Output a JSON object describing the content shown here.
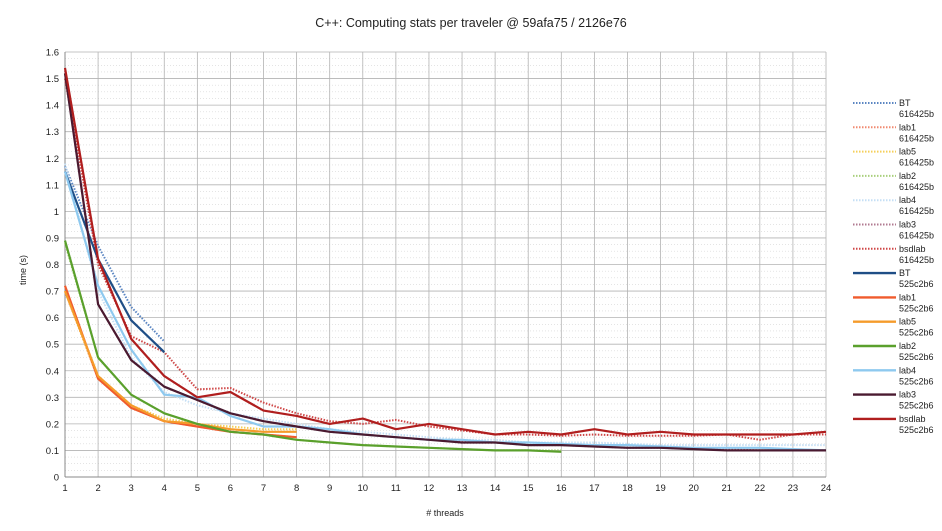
{
  "chart_data": {
    "type": "line",
    "title": "C++: Computing stats per traveler @ 59afa75 / 2126e76",
    "xlabel": "# threads",
    "ylabel": "time (s)",
    "xlim": [
      1,
      24
    ],
    "ylim": [
      0,
      1.6
    ],
    "x_ticks": [
      "1",
      "2",
      "3",
      "4",
      "5",
      "6",
      "7",
      "8",
      "9",
      "10",
      "11",
      "12",
      "13",
      "14",
      "15",
      "16",
      "17",
      "18",
      "19",
      "20",
      "21",
      "22",
      "23",
      "24"
    ],
    "y_ticks": [
      "0",
      "0.1",
      "0.2",
      "0.3",
      "0.4",
      "0.5",
      "0.6",
      "0.7",
      "0.8",
      "0.9",
      "1",
      "1.1",
      "1.2",
      "1.3",
      "1.4",
      "1.5",
      "1.6"
    ],
    "grid": true,
    "legend_position": "right",
    "series": [
      {
        "name": "BT",
        "version": "616425b",
        "style": "dotted",
        "color": "#5b86c2",
        "x": [
          1,
          2,
          3,
          4
        ],
        "values": [
          1.17,
          0.87,
          0.64,
          0.51
        ]
      },
      {
        "name": "lab1",
        "version": "616425b",
        "style": "dotted",
        "color": "#f08a70",
        "x": [
          1,
          2,
          3,
          4,
          5,
          6,
          7,
          8
        ],
        "values": [
          0.7,
          0.37,
          0.26,
          0.21,
          0.19,
          0.17,
          0.16,
          0.15
        ]
      },
      {
        "name": "lab5",
        "version": "616425b",
        "style": "dotted",
        "color": "#f5cf5a",
        "x": [
          1,
          2,
          3,
          4,
          5,
          6,
          7,
          8
        ],
        "values": [
          0.7,
          0.37,
          0.27,
          0.22,
          0.2,
          0.19,
          0.18,
          0.18
        ]
      },
      {
        "name": "lab2",
        "version": "616425b",
        "style": "dotted",
        "color": "#a9cf7c",
        "x": [
          1,
          2,
          3,
          4,
          5,
          6,
          7,
          8,
          9,
          10,
          11,
          12,
          13,
          14,
          15,
          16
        ],
        "values": [
          0.88,
          0.45,
          0.31,
          0.24,
          0.2,
          0.17,
          0.16,
          0.14,
          0.13,
          0.12,
          0.115,
          0.11,
          0.105,
          0.1,
          0.1,
          0.1
        ]
      },
      {
        "name": "lab4",
        "version": "616425b",
        "style": "dotted",
        "color": "#c5dff5",
        "x": [
          1,
          2,
          3,
          4,
          5,
          6,
          7,
          8,
          9,
          10,
          11,
          12,
          13,
          14,
          15,
          16,
          17,
          18,
          19,
          20,
          21,
          22,
          23,
          24
        ],
        "values": [
          1.18,
          0.7,
          0.45,
          0.32,
          0.27,
          0.24,
          0.22,
          0.2,
          0.18,
          0.17,
          0.16,
          0.15,
          0.14,
          0.14,
          0.13,
          0.13,
          0.13,
          0.125,
          0.12,
          0.12,
          0.12,
          0.12,
          0.12,
          0.12
        ]
      },
      {
        "name": "lab3",
        "version": "616425b",
        "style": "dotted",
        "color": "#b07a90",
        "x": [
          1,
          2,
          3,
          4,
          5,
          6,
          7,
          8,
          9,
          10,
          11,
          12,
          13,
          14,
          15,
          16,
          17,
          18,
          19,
          20,
          21,
          22,
          23,
          24
        ],
        "values": [
          1.53,
          0.65,
          0.44,
          0.34,
          0.29,
          0.24,
          0.21,
          0.19,
          0.17,
          0.16,
          0.15,
          0.14,
          0.135,
          0.13,
          0.12,
          0.12,
          0.115,
          0.11,
          0.11,
          0.105,
          0.105,
          0.1,
          0.1,
          0.1
        ]
      },
      {
        "name": "bsdlab",
        "version": "616425b",
        "style": "dotted",
        "color": "#cf4747",
        "x": [
          1,
          2,
          3,
          4,
          5,
          6,
          7,
          8,
          9,
          10,
          11,
          12,
          13,
          14,
          15,
          16,
          17,
          18,
          19,
          20,
          21,
          22,
          23,
          24
        ],
        "values": [
          1.5,
          0.8,
          0.53,
          0.47,
          0.33,
          0.335,
          0.28,
          0.24,
          0.21,
          0.2,
          0.215,
          0.19,
          0.175,
          0.16,
          0.16,
          0.155,
          0.16,
          0.155,
          0.155,
          0.155,
          0.16,
          0.14,
          0.16,
          0.16
        ]
      },
      {
        "name": "BT",
        "version": "525c2b6",
        "style": "solid",
        "color": "#1f4e86",
        "x": [
          1,
          2,
          3,
          4
        ],
        "values": [
          1.15,
          0.82,
          0.59,
          0.47
        ]
      },
      {
        "name": "lab1",
        "version": "525c2b6",
        "style": "solid",
        "color": "#f05b2d",
        "x": [
          1,
          2,
          3,
          4,
          5,
          6,
          7,
          8
        ],
        "values": [
          0.72,
          0.37,
          0.26,
          0.21,
          0.19,
          0.17,
          0.16,
          0.15
        ]
      },
      {
        "name": "lab5",
        "version": "525c2b6",
        "style": "solid",
        "color": "#f59b2b",
        "x": [
          1,
          2,
          3,
          4,
          5,
          6,
          7,
          8
        ],
        "values": [
          0.7,
          0.38,
          0.27,
          0.21,
          0.2,
          0.18,
          0.17,
          0.17
        ]
      },
      {
        "name": "lab2",
        "version": "525c2b6",
        "style": "solid",
        "color": "#5aa02c",
        "x": [
          1,
          2,
          3,
          4,
          5,
          6,
          7,
          8,
          9,
          10,
          11,
          12,
          13,
          14,
          15,
          16
        ],
        "values": [
          0.89,
          0.45,
          0.31,
          0.24,
          0.2,
          0.17,
          0.16,
          0.14,
          0.13,
          0.12,
          0.115,
          0.11,
          0.105,
          0.1,
          0.1,
          0.095
        ]
      },
      {
        "name": "lab4",
        "version": "525c2b6",
        "style": "solid",
        "color": "#8ec9ef",
        "x": [
          1,
          2,
          3,
          4,
          5,
          6,
          7,
          8,
          9,
          10,
          11,
          12,
          13,
          14,
          15,
          16,
          17,
          18,
          19,
          20,
          21,
          22,
          23,
          24
        ],
        "values": [
          1.15,
          0.72,
          0.48,
          0.31,
          0.3,
          0.23,
          0.19,
          0.19,
          0.18,
          0.16,
          0.15,
          0.14,
          0.14,
          0.13,
          0.13,
          0.125,
          0.12,
          0.12,
          0.115,
          0.11,
          0.11,
          0.11,
          0.105,
          0.1
        ]
      },
      {
        "name": "lab3",
        "version": "525c2b6",
        "style": "solid",
        "color": "#4a1a30",
        "x": [
          1,
          2,
          3,
          4,
          5,
          6,
          7,
          8,
          9,
          10,
          11,
          12,
          13,
          14,
          15,
          16,
          17,
          18,
          19,
          20,
          21,
          22,
          23,
          24
        ],
        "values": [
          1.52,
          0.65,
          0.44,
          0.34,
          0.29,
          0.24,
          0.21,
          0.19,
          0.17,
          0.16,
          0.15,
          0.14,
          0.13,
          0.13,
          0.12,
          0.12,
          0.115,
          0.11,
          0.11,
          0.105,
          0.1,
          0.1,
          0.1,
          0.1
        ]
      },
      {
        "name": "bsdlab",
        "version": "525c2b6",
        "style": "solid",
        "color": "#b01e1e",
        "x": [
          1,
          2,
          3,
          4,
          5,
          6,
          7,
          8,
          9,
          10,
          11,
          12,
          13,
          14,
          15,
          16,
          17,
          18,
          19,
          20,
          21,
          22,
          23,
          24
        ],
        "values": [
          1.54,
          0.82,
          0.52,
          0.38,
          0.3,
          0.32,
          0.25,
          0.23,
          0.2,
          0.22,
          0.18,
          0.2,
          0.18,
          0.16,
          0.17,
          0.16,
          0.18,
          0.16,
          0.17,
          0.16,
          0.16,
          0.16,
          0.16,
          0.17
        ]
      }
    ]
  }
}
